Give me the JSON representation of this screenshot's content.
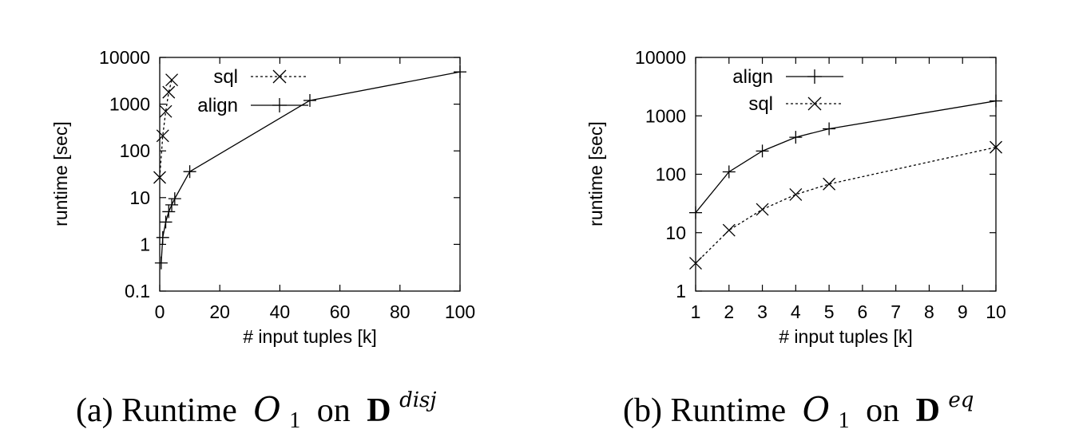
{
  "chart_data": [
    {
      "type": "line",
      "caption": {
        "prefix": "(a) Runtime",
        "op": "O",
        "op_sub": "1",
        "mid": "on",
        "db": "D",
        "db_sup": "disj"
      },
      "xlabel": "# input tuples [k]",
      "ylabel": "runtime [sec]",
      "xlim": [
        0,
        100
      ],
      "ylim": [
        0.1,
        10000
      ],
      "yscale": "log",
      "xticks": [
        0,
        20,
        40,
        60,
        80,
        100
      ],
      "xtick_labels": [
        "0",
        "20",
        "40",
        "60",
        "80",
        "100"
      ],
      "yticks": [
        0.1,
        1,
        10,
        100,
        1000,
        10000
      ],
      "ytick_labels": [
        "0.1",
        "1",
        "10",
        "100",
        "1000",
        "10000"
      ],
      "grid": false,
      "legend_position": "top-center",
      "series": [
        {
          "name": "sql",
          "style": "dashed",
          "marker": "x",
          "x": [
            0,
            1,
            2,
            3,
            4
          ],
          "y": [
            27,
            210,
            700,
            1800,
            3300
          ]
        },
        {
          "name": "align",
          "style": "solid",
          "marker": "+",
          "x": [
            0.5,
            1,
            2,
            3,
            4,
            5,
            10,
            50,
            100
          ],
          "y": [
            0.4,
            1.4,
            3,
            5,
            7,
            9.5,
            36,
            1200,
            4900
          ]
        }
      ]
    },
    {
      "type": "line",
      "caption": {
        "prefix": "(b) Runtime",
        "op": "O",
        "op_sub": "1",
        "mid": "on",
        "db": "D",
        "db_sup": "eq"
      },
      "xlabel": "# input tuples [k]",
      "ylabel": "runtime [sec]",
      "xlim": [
        1,
        10
      ],
      "ylim": [
        1,
        10000
      ],
      "yscale": "log",
      "xticks": [
        1,
        2,
        3,
        4,
        5,
        6,
        7,
        8,
        9,
        10
      ],
      "xtick_labels": [
        "1",
        "2",
        "3",
        "4",
        "5",
        "6",
        "7",
        "8",
        "9",
        "10"
      ],
      "yticks": [
        1,
        10,
        100,
        1000,
        10000
      ],
      "ytick_labels": [
        "1",
        "10",
        "100",
        "1000",
        "10000"
      ],
      "grid": false,
      "legend_position": "top-left",
      "series": [
        {
          "name": "align",
          "style": "solid",
          "marker": "+",
          "x": [
            1,
            2,
            3,
            4,
            5,
            10
          ],
          "y": [
            22,
            110,
            250,
            430,
            600,
            1800
          ]
        },
        {
          "name": "sql",
          "style": "dashed",
          "marker": "x",
          "x": [
            1,
            2,
            3,
            4,
            5,
            10
          ],
          "y": [
            3,
            11,
            25,
            45,
            68,
            290
          ]
        }
      ]
    }
  ]
}
